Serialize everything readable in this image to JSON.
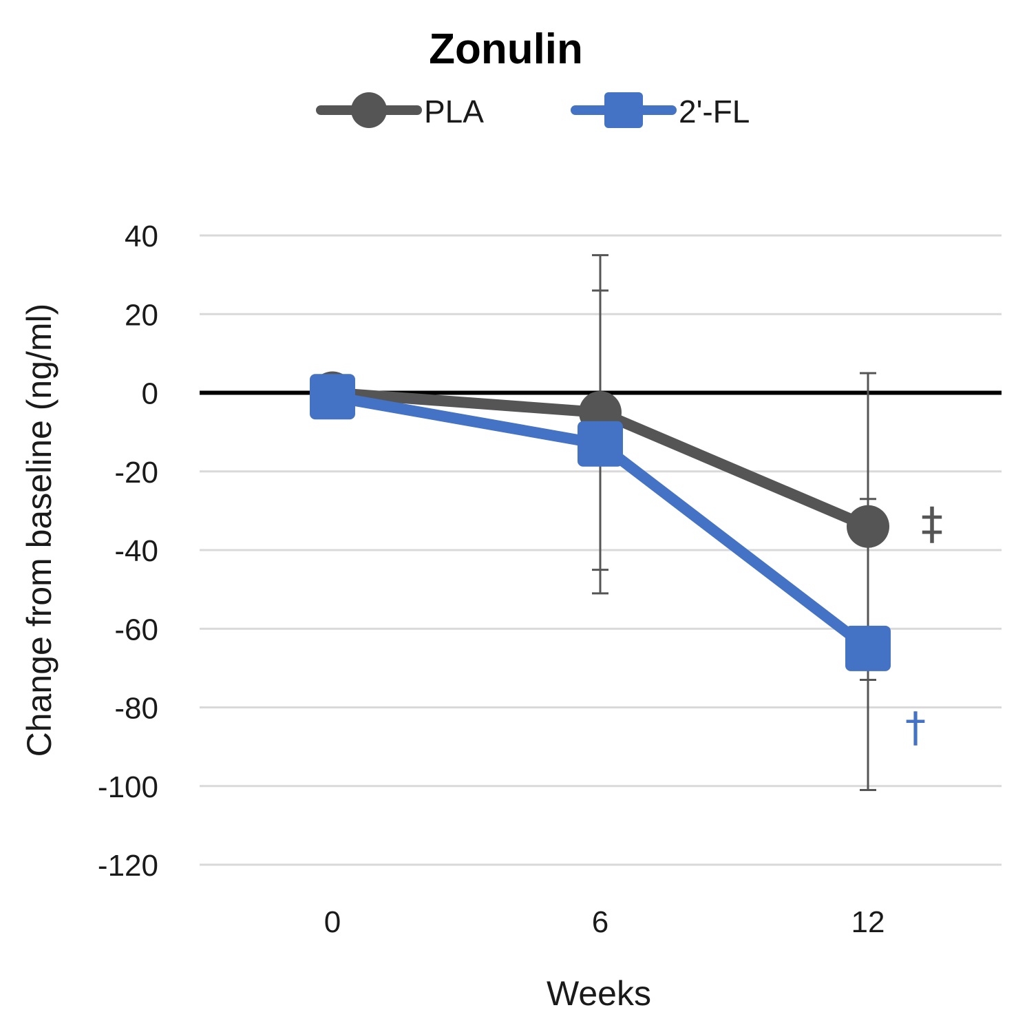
{
  "chart_data": {
    "type": "line",
    "title": "Zonulin",
    "xlabel": "Weeks",
    "ylabel": "Change from baseline (ng/ml)",
    "categories": [
      "0",
      "6",
      "12"
    ],
    "ylim": [
      -120,
      40
    ],
    "yticks": [
      40,
      20,
      0,
      -20,
      -40,
      -60,
      -80,
      -100,
      -120
    ],
    "grid": true,
    "legend_position": "top",
    "series": [
      {
        "name": "PLA",
        "color": "#555555",
        "marker": "circle",
        "values": [
          0,
          -5,
          -34
        ],
        "error_low": [
          null,
          -51,
          -101
        ],
        "error_high": [
          null,
          35,
          5
        ]
      },
      {
        "name": "2'-FL",
        "color": "#4472C4",
        "marker": "square",
        "values": [
          -1,
          -13,
          -65
        ],
        "error_low": [
          null,
          -45,
          -73
        ],
        "error_high": [
          null,
          26,
          -27
        ]
      }
    ],
    "annotations": [
      {
        "text": "‡",
        "series": "PLA",
        "category": "12",
        "color": "#555555"
      },
      {
        "text": "†",
        "series": "2'-FL",
        "category": "12",
        "color": "#4472C4"
      }
    ]
  }
}
